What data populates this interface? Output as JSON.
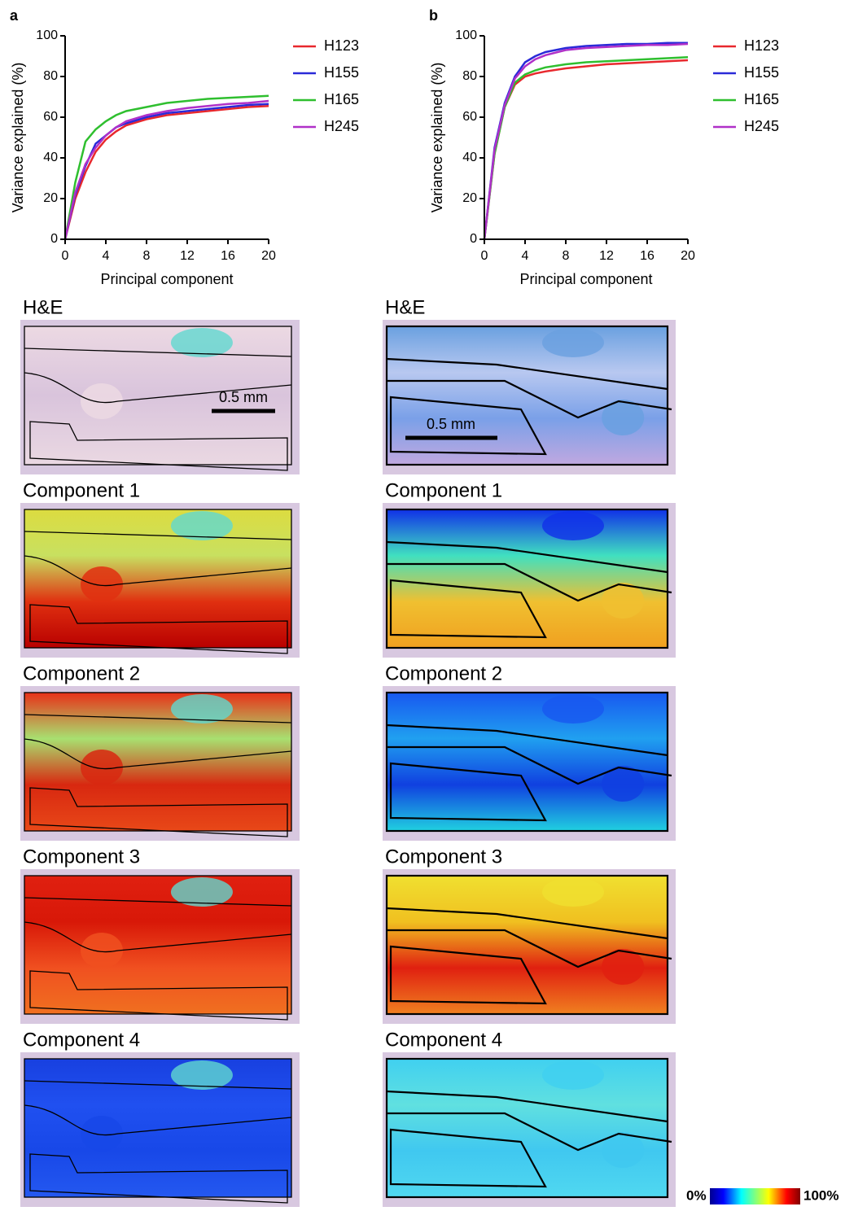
{
  "chart_data": [
    {
      "type": "line",
      "panel_label": "a",
      "x_label": "Principal component",
      "y_label": "Variance explained (%)",
      "x": [
        0,
        1,
        2,
        3,
        4,
        5,
        6,
        8,
        10,
        12,
        14,
        16,
        18,
        20
      ],
      "xlim": [
        0,
        20
      ],
      "xticks": [
        0,
        4,
        8,
        12,
        16,
        20
      ],
      "ylim": [
        0,
        100
      ],
      "yticks": [
        0,
        20,
        40,
        60,
        80,
        100
      ],
      "grid": false,
      "series": [
        {
          "name": "H123",
          "color": "#e8282d",
          "values": [
            0,
            20,
            33,
            43,
            49,
            53,
            56,
            59,
            61,
            62,
            63,
            64,
            65,
            65.5
          ]
        },
        {
          "name": "H155",
          "color": "#2a2ad8",
          "values": [
            0,
            22,
            36,
            47,
            51,
            55,
            57,
            60,
            62,
            63,
            64,
            65,
            66,
            66.5
          ]
        },
        {
          "name": "H165",
          "color": "#2fbf2f",
          "values": [
            0,
            28,
            48,
            54,
            58,
            61,
            63,
            65,
            67,
            68,
            69,
            69.5,
            70,
            70.5
          ]
        },
        {
          "name": "H245",
          "color": "#b030c8",
          "values": [
            0,
            23,
            37,
            45,
            51,
            55,
            58,
            61,
            63,
            64.5,
            65.5,
            66.5,
            67,
            68
          ]
        }
      ]
    },
    {
      "type": "line",
      "panel_label": "b",
      "x_label": "Principal component",
      "y_label": "Variance explained (%)",
      "x": [
        0,
        1,
        2,
        3,
        4,
        5,
        6,
        8,
        10,
        12,
        14,
        16,
        18,
        20
      ],
      "xlim": [
        0,
        20
      ],
      "xticks": [
        0,
        4,
        8,
        12,
        16,
        20
      ],
      "ylim": [
        0,
        100
      ],
      "yticks": [
        0,
        20,
        40,
        60,
        80,
        100
      ],
      "grid": false,
      "series": [
        {
          "name": "H123",
          "color": "#e8282d",
          "values": [
            0,
            42,
            65,
            76,
            80,
            81.5,
            82.5,
            84,
            85,
            86,
            86.5,
            87,
            87.5,
            88
          ]
        },
        {
          "name": "H155",
          "color": "#2a2ad8",
          "values": [
            0,
            45,
            67,
            80,
            87,
            90,
            92,
            94,
            95,
            95.5,
            96,
            96,
            96.5,
            96.5
          ]
        },
        {
          "name": "H165",
          "color": "#2fbf2f",
          "values": [
            0,
            42,
            65,
            77,
            81,
            83,
            84.5,
            86,
            87,
            87.5,
            88,
            88.5,
            89,
            89.5
          ]
        },
        {
          "name": "H245",
          "color": "#b030c8",
          "values": [
            0,
            44,
            66,
            79,
            85,
            88.5,
            90.5,
            93,
            94,
            94.5,
            95,
            95.5,
            95.5,
            96
          ]
        }
      ]
    }
  ],
  "image_columns": [
    {
      "titles": [
        "H&E",
        "Component 1",
        "Component 2",
        "Component 3",
        "Component 4"
      ],
      "scale_bar": "0.5 mm"
    },
    {
      "titles": [
        "H&E",
        "Component 1",
        "Component 2",
        "Component 3",
        "Component 4"
      ],
      "scale_bar": "0.5 mm"
    }
  ],
  "colorbar": {
    "min_label": "0%",
    "max_label": "100%"
  }
}
